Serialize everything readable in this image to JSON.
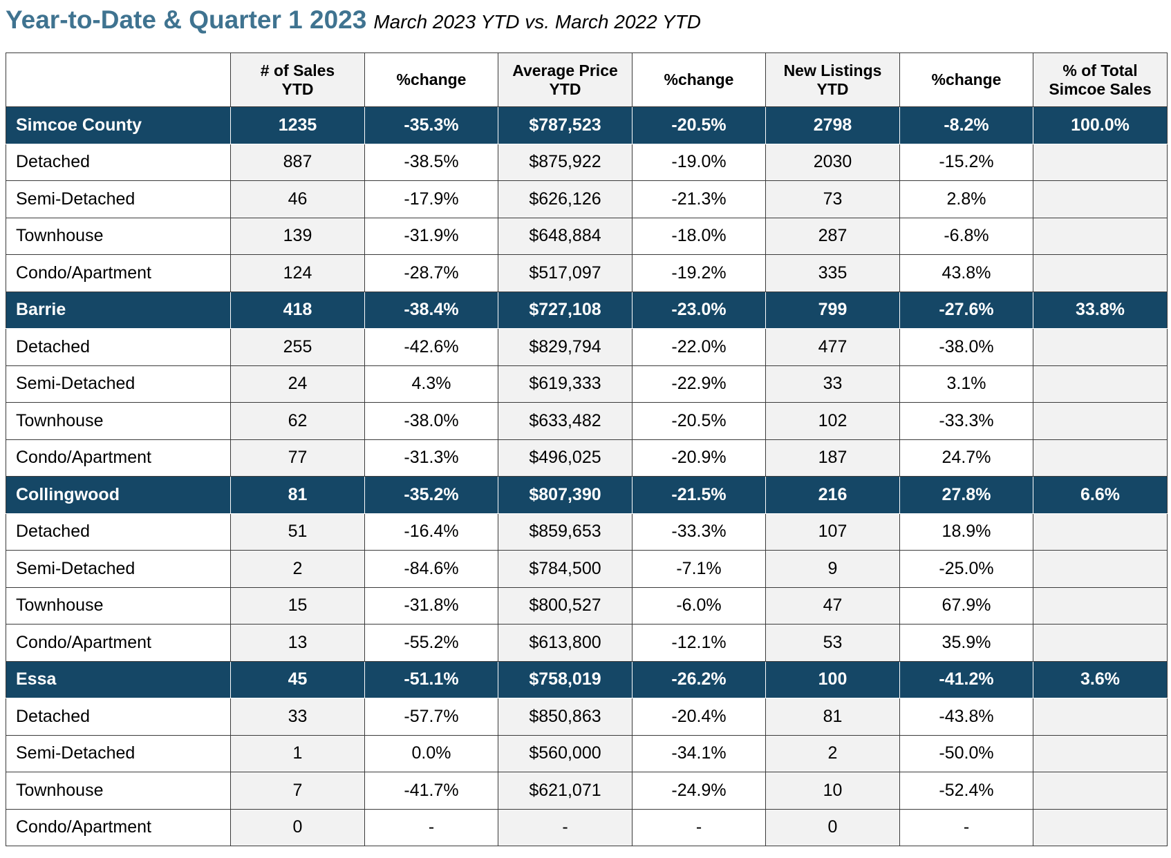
{
  "heading": {
    "title": "Year-to-Date & Quarter 1 2023",
    "subtitle": "March 2023 YTD vs. March 2022 YTD"
  },
  "columns": [
    {
      "line1": "",
      "line2": ""
    },
    {
      "line1": "# of Sales",
      "line2": "YTD"
    },
    {
      "line1": "%change",
      "line2": ""
    },
    {
      "line1": "Average Price",
      "line2": "YTD"
    },
    {
      "line1": "%change",
      "line2": ""
    },
    {
      "line1": "New Listings",
      "line2": "YTD"
    },
    {
      "line1": "%change",
      "line2": ""
    },
    {
      "line1": "% of Total",
      "line2": "Simcoe Sales"
    }
  ],
  "rows": [
    {
      "type": "region",
      "cells": [
        "Simcoe County",
        "1235",
        "-35.3%",
        "$787,523",
        "-20.5%",
        "2798",
        "-8.2%",
        "100.0%"
      ]
    },
    {
      "type": "sub",
      "cells": [
        "Detached",
        "887",
        "-38.5%",
        "$875,922",
        "-19.0%",
        "2030",
        "-15.2%",
        ""
      ]
    },
    {
      "type": "sub",
      "cells": [
        "Semi-Detached",
        "46",
        "-17.9%",
        "$626,126",
        "-21.3%",
        "73",
        "2.8%",
        ""
      ]
    },
    {
      "type": "sub",
      "cells": [
        "Townhouse",
        "139",
        "-31.9%",
        "$648,884",
        "-18.0%",
        "287",
        "-6.8%",
        ""
      ]
    },
    {
      "type": "sub",
      "cells": [
        "Condo/Apartment",
        "124",
        "-28.7%",
        "$517,097",
        "-19.2%",
        "335",
        "43.8%",
        ""
      ]
    },
    {
      "type": "region",
      "cells": [
        "Barrie",
        "418",
        "-38.4%",
        "$727,108",
        "-23.0%",
        "799",
        "-27.6%",
        "33.8%"
      ]
    },
    {
      "type": "sub",
      "cells": [
        "Detached",
        "255",
        "-42.6%",
        "$829,794",
        "-22.0%",
        "477",
        "-38.0%",
        ""
      ]
    },
    {
      "type": "sub",
      "cells": [
        "Semi-Detached",
        "24",
        "4.3%",
        "$619,333",
        "-22.9%",
        "33",
        "3.1%",
        ""
      ]
    },
    {
      "type": "sub",
      "cells": [
        "Townhouse",
        "62",
        "-38.0%",
        "$633,482",
        "-20.5%",
        "102",
        "-33.3%",
        ""
      ]
    },
    {
      "type": "sub",
      "cells": [
        "Condo/Apartment",
        "77",
        "-31.3%",
        "$496,025",
        "-20.9%",
        "187",
        "24.7%",
        ""
      ]
    },
    {
      "type": "region",
      "cells": [
        "Collingwood",
        "81",
        "-35.2%",
        "$807,390",
        "-21.5%",
        "216",
        "27.8%",
        "6.6%"
      ]
    },
    {
      "type": "sub",
      "cells": [
        "Detached",
        "51",
        "-16.4%",
        "$859,653",
        "-33.3%",
        "107",
        "18.9%",
        ""
      ]
    },
    {
      "type": "sub",
      "cells": [
        "Semi-Detached",
        "2",
        "-84.6%",
        "$784,500",
        "-7.1%",
        "9",
        "-25.0%",
        ""
      ]
    },
    {
      "type": "sub",
      "cells": [
        "Townhouse",
        "15",
        "-31.8%",
        "$800,527",
        "-6.0%",
        "47",
        "67.9%",
        ""
      ]
    },
    {
      "type": "sub",
      "cells": [
        "Condo/Apartment",
        "13",
        "-55.2%",
        "$613,800",
        "-12.1%",
        "53",
        "35.9%",
        ""
      ]
    },
    {
      "type": "region",
      "cells": [
        "Essa",
        "45",
        "-51.1%",
        "$758,019",
        "-26.2%",
        "100",
        "-41.2%",
        "3.6%"
      ]
    },
    {
      "type": "sub",
      "cells": [
        "Detached",
        "33",
        "-57.7%",
        "$850,863",
        "-20.4%",
        "81",
        "-43.8%",
        ""
      ]
    },
    {
      "type": "sub",
      "cells": [
        "Semi-Detached",
        "1",
        "0.0%",
        "$560,000",
        "-34.1%",
        "2",
        "-50.0%",
        ""
      ]
    },
    {
      "type": "sub",
      "cells": [
        "Townhouse",
        "7",
        "-41.7%",
        "$621,071",
        "-24.9%",
        "10",
        "-52.4%",
        ""
      ]
    },
    {
      "type": "sub",
      "cells": [
        "Condo/Apartment",
        "0",
        "-",
        "-",
        "-",
        "0",
        "-",
        ""
      ]
    }
  ],
  "colors": {
    "title": "#3f7390",
    "region_row_bg": "#154766",
    "shaded_col_bg": "#f2f2f2",
    "border": "#3a3a3a"
  }
}
